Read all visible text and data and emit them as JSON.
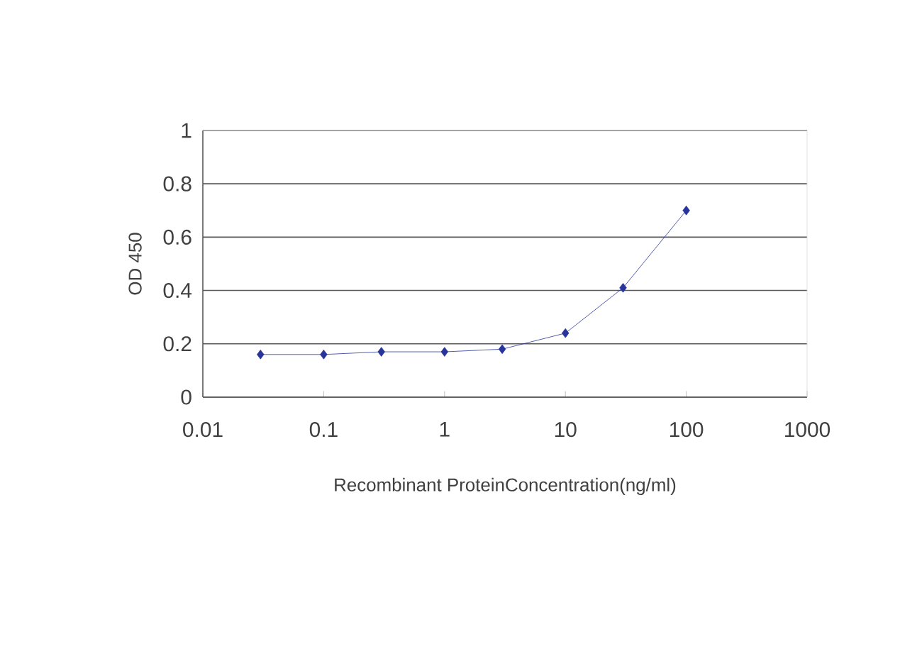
{
  "chart_data": {
    "type": "line",
    "xlabel": "Recombinant ProteinConcentration(ng/ml)",
    "ylabel": "OD 450",
    "x": [
      0.03,
      0.1,
      0.3,
      1,
      3,
      10,
      30,
      100
    ],
    "values": [
      0.16,
      0.16,
      0.17,
      0.17,
      0.18,
      0.24,
      0.41,
      0.7
    ],
    "color": "#27349a",
    "marker": "diamond",
    "line_style": "solid",
    "log": "x",
    "grid": "y",
    "xlim": [
      0.01,
      1000
    ],
    "ylim": [
      0,
      1
    ],
    "xticks": [
      0.01,
      0.1,
      1,
      10,
      100,
      1000
    ],
    "yticks": [
      0,
      0.2,
      0.4,
      0.6,
      0.8,
      1
    ]
  }
}
